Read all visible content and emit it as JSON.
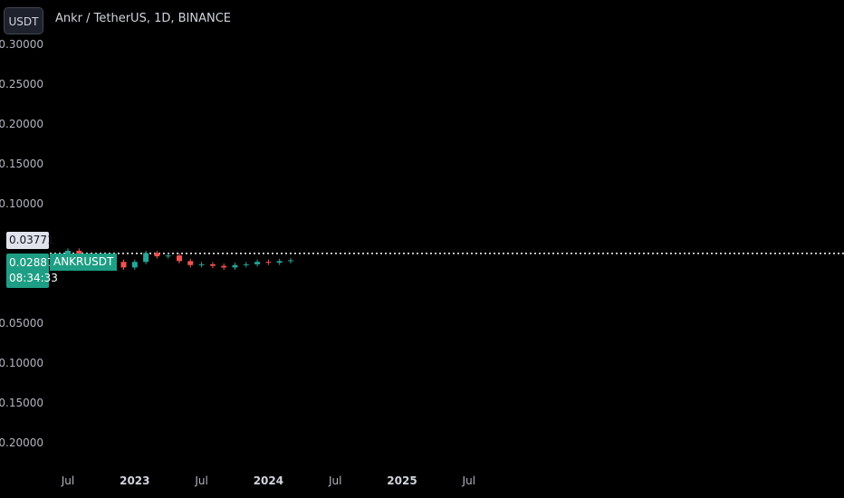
{
  "header": {
    "currency_button": "USDT",
    "title": "Ankr / TetherUS, 1D, BINANCE"
  },
  "price_tags": {
    "last_value": "0.03771",
    "current_value": "0.02887",
    "countdown": "08:34:33",
    "symbol": "ANKRUSDT"
  },
  "colors": {
    "background": "#000000",
    "up": "#26a69a",
    "down": "#ef5350",
    "dotted_line": "#ffffff",
    "current_tag": "#1e9e84"
  },
  "chart_data": {
    "type": "candlestick",
    "title": "Ankr / TetherUS, 1D, BINANCE",
    "y_ticks": [
      0.3,
      0.25,
      0.2,
      0.15,
      0.1,
      -0.05,
      -0.1,
      -0.15,
      -0.2
    ],
    "y_tick_labels": [
      "0.30000",
      "0.25000",
      "0.20000",
      "0.15000",
      "0.10000",
      "−0.05000",
      "−0.10000",
      "−0.15000",
      "−0.20000"
    ],
    "x_tick_labels": [
      "Jul",
      "2023",
      "Jul",
      "2024",
      "Jul",
      "2025",
      "Jul"
    ],
    "x_tick_dates": [
      "2022-07",
      "2023-01",
      "2023-07",
      "2024-01",
      "2024-07",
      "2025-01",
      "2025-07"
    ],
    "last_price": 0.02887,
    "dotted_reference_price": 0.03771,
    "series": [
      {
        "period": "2022-06",
        "close": 0.034
      },
      {
        "period": "2022-07",
        "close": 0.041
      },
      {
        "period": "2022-08",
        "close": 0.035
      },
      {
        "period": "2022-09",
        "close": 0.031
      },
      {
        "period": "2022-10",
        "close": 0.03
      },
      {
        "period": "2022-11",
        "close": 0.027
      },
      {
        "period": "2022-12",
        "close": 0.02
      },
      {
        "period": "2023-01",
        "close": 0.027
      },
      {
        "period": "2023-02",
        "close": 0.038
      },
      {
        "period": "2023-03",
        "close": 0.034
      },
      {
        "period": "2023-04",
        "close": 0.035
      },
      {
        "period": "2023-05",
        "close": 0.028
      },
      {
        "period": "2023-06",
        "close": 0.023
      },
      {
        "period": "2023-07",
        "close": 0.024
      },
      {
        "period": "2023-08",
        "close": 0.022
      },
      {
        "period": "2023-09",
        "close": 0.02
      },
      {
        "period": "2023-10",
        "close": 0.023
      },
      {
        "period": "2023-11",
        "close": 0.024
      },
      {
        "period": "2023-12",
        "close": 0.027
      },
      {
        "period": "2024-01",
        "close": 0.026
      },
      {
        "period": "2024-02",
        "close": 0.028
      },
      {
        "period": "2024-03",
        "close": 0.029
      }
    ]
  }
}
